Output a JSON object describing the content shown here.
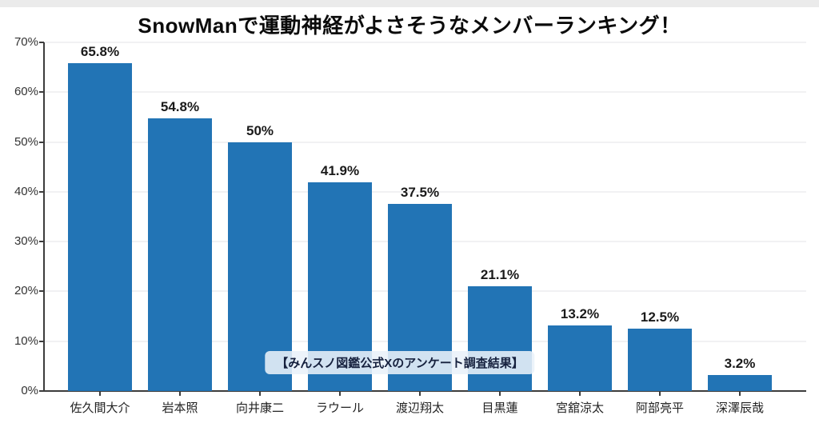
{
  "title": "SnowManで運動神経がよさそうなメンバーランキング！",
  "annotation": "【みんスノ図鑑公式Xのアンケート調査結果】",
  "colors": {
    "bar": "#2274b5",
    "axis": "#3c3c3c",
    "grid": "#f1f1f3",
    "annotation_bg": "#e9f1f9",
    "annotation_text": "#16213e"
  },
  "chart_data": {
    "type": "bar",
    "title": "SnowManで運動神経がよさそうなメンバーランキング！",
    "categories": [
      "佐久間大介",
      "岩本照",
      "向井康二",
      "ラウール",
      "渡辺翔太",
      "目黒蓮",
      "宮舘涼太",
      "阿部亮平",
      "深澤辰哉"
    ],
    "values": [
      65.8,
      54.8,
      50,
      41.9,
      37.5,
      21.1,
      13.2,
      12.5,
      3.2
    ],
    "value_labels": [
      "65.8%",
      "54.8%",
      "50%",
      "41.9%",
      "37.5%",
      "21.1%",
      "13.2%",
      "12.5%",
      "3.2%"
    ],
    "xlabel": "",
    "ylabel": "",
    "ylim": [
      0,
      70
    ],
    "yticks": [
      0,
      10,
      20,
      30,
      40,
      50,
      60,
      70
    ],
    "ytick_labels": [
      "0%",
      "10%",
      "20%",
      "30%",
      "40%",
      "50%",
      "60%",
      "70%"
    ],
    "grid": true,
    "legend": "none",
    "annotation": "【みんスノ図鑑公式Xのアンケート調査結果】"
  }
}
